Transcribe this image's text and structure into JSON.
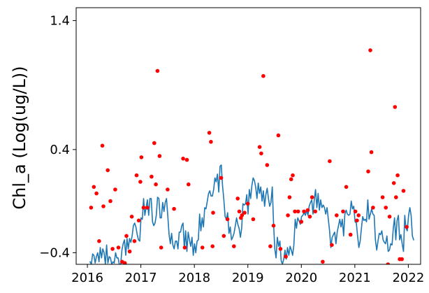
{
  "chart_data": {
    "type": "scatter",
    "title": "",
    "xlabel": "",
    "ylabel": "Chl_a (Log(ug/L))",
    "xlim": [
      2015.79,
      2022.23
    ],
    "ylim": [
      -0.49,
      1.5
    ],
    "x_ticks": [
      2016,
      2017,
      2018,
      2019,
      2020,
      2021,
      2022
    ],
    "x_tick_labels": [
      "2016",
      "2017",
      "2018",
      "2019",
      "2020",
      "2021",
      "2022"
    ],
    "y_ticks": [
      -0.4,
      0.4,
      1.4
    ],
    "y_tick_labels": [
      "−0.4",
      "0.4",
      "1.4"
    ],
    "grid": false,
    "legend": "none",
    "colors": {
      "points": "#ff0000",
      "line": "#1f77b4",
      "axes": "#000000"
    },
    "series": [
      {
        "type": "scatter",
        "points": [
          [
            2016.07,
            -0.05
          ],
          [
            2016.12,
            0.11
          ],
          [
            2016.17,
            0.06
          ],
          [
            2016.22,
            -0.31
          ],
          [
            2016.28,
            0.43
          ],
          [
            2016.3,
            -0.04
          ],
          [
            2016.38,
            0.24
          ],
          [
            2016.43,
            0.0
          ],
          [
            2016.47,
            -0.37
          ],
          [
            2016.52,
            0.09
          ],
          [
            2016.58,
            -0.36
          ],
          [
            2016.65,
            -0.47
          ],
          [
            2016.7,
            -0.48
          ],
          [
            2016.73,
            -0.27
          ],
          [
            2016.79,
            -0.39
          ],
          [
            2016.83,
            -0.12
          ],
          [
            2016.88,
            -0.31
          ],
          [
            2016.92,
            0.2
          ],
          [
            2016.96,
            -0.15
          ],
          [
            2016.99,
            0.15
          ],
          [
            2017.01,
            0.34
          ],
          [
            2017.05,
            -0.05
          ],
          [
            2017.12,
            -0.05
          ],
          [
            2017.2,
            0.19
          ],
          [
            2017.25,
            0.45
          ],
          [
            2017.28,
            0.13
          ],
          [
            2017.31,
            1.01
          ],
          [
            2017.35,
            0.35
          ],
          [
            2017.38,
            -0.36
          ],
          [
            2017.5,
            0.09
          ],
          [
            2017.62,
            -0.06
          ],
          [
            2017.79,
            0.33
          ],
          [
            2017.82,
            -0.36
          ],
          [
            2017.86,
            0.32
          ],
          [
            2017.89,
            0.13
          ],
          [
            2018.15,
            -0.36
          ],
          [
            2018.28,
            0.53
          ],
          [
            2018.31,
            0.46
          ],
          [
            2018.34,
            -0.35
          ],
          [
            2018.35,
            -0.09
          ],
          [
            2018.5,
            0.18
          ],
          [
            2018.55,
            -0.27
          ],
          [
            2018.62,
            -0.14
          ],
          [
            2018.74,
            -0.35
          ],
          [
            2018.81,
            0.02
          ],
          [
            2018.84,
            -0.08
          ],
          [
            2018.87,
            -0.13
          ],
          [
            2018.89,
            -0.11
          ],
          [
            2018.94,
            -0.09
          ],
          [
            2019.0,
            -0.02
          ],
          [
            2019.1,
            -0.14
          ],
          [
            2019.22,
            0.42
          ],
          [
            2019.25,
            0.37
          ],
          [
            2019.29,
            0.97
          ],
          [
            2019.36,
            0.28
          ],
          [
            2019.42,
            -0.35
          ],
          [
            2019.48,
            -0.19
          ],
          [
            2019.57,
            0.51
          ],
          [
            2019.61,
            -0.37
          ],
          [
            2019.71,
            -0.43
          ],
          [
            2019.75,
            -0.11
          ],
          [
            2019.78,
            0.03
          ],
          [
            2019.81,
            0.17
          ],
          [
            2019.84,
            0.2
          ],
          [
            2019.88,
            -0.08
          ],
          [
            2019.94,
            -0.08
          ],
          [
            2020.0,
            -0.16
          ],
          [
            2020.05,
            -0.08
          ],
          [
            2020.12,
            -0.07
          ],
          [
            2020.16,
            -0.12
          ],
          [
            2020.2,
            0.03
          ],
          [
            2020.26,
            -0.08
          ],
          [
            2020.4,
            -0.47
          ],
          [
            2020.53,
            0.31
          ],
          [
            2020.57,
            -0.34
          ],
          [
            2020.66,
            -0.11
          ],
          [
            2020.78,
            -0.08
          ],
          [
            2020.84,
            0.11
          ],
          [
            2020.92,
            -0.26
          ],
          [
            2021.01,
            -0.08
          ],
          [
            2021.04,
            -0.15
          ],
          [
            2021.07,
            -0.11
          ],
          [
            2021.25,
            0.23
          ],
          [
            2021.29,
            1.17
          ],
          [
            2021.31,
            0.38
          ],
          [
            2021.34,
            -0.05
          ],
          [
            2021.52,
            0.03
          ],
          [
            2021.58,
            -0.05
          ],
          [
            2021.62,
            -0.49
          ],
          [
            2021.65,
            -0.12
          ],
          [
            2021.73,
            0.14
          ],
          [
            2021.75,
            0.73
          ],
          [
            2021.77,
            0.03
          ],
          [
            2021.8,
            0.2
          ],
          [
            2021.84,
            -0.45
          ],
          [
            2021.88,
            -0.45
          ],
          [
            2021.91,
            0.08
          ],
          [
            2021.97,
            -0.2
          ]
        ]
      },
      {
        "type": "line",
        "x_start": 2016.05,
        "x_end": 2022.1,
        "values": [
          -0.47,
          -0.49,
          -0.41,
          -0.42,
          -0.48,
          -0.43,
          -0.4,
          -0.47,
          -0.36,
          -0.44,
          -0.37,
          -0.4,
          -0.49,
          -0.34,
          -0.48,
          -0.43,
          -0.44,
          -0.49,
          -0.47,
          -0.48,
          -0.4,
          -0.44,
          -0.44,
          -0.49,
          -0.49,
          -0.38,
          -0.33,
          -0.3,
          -0.42,
          -0.29,
          -0.37,
          -0.29,
          -0.32,
          -0.27,
          -0.19,
          -0.17,
          -0.2,
          -0.26,
          -0.3,
          -0.31,
          -0.13,
          -0.14,
          0.02,
          -0.11,
          -0.05,
          0.01,
          -0.11,
          0.02,
          0.02,
          -0.16,
          -0.19,
          -0.17,
          -0.11,
          0.03,
          0.02,
          -0.13,
          -0.13,
          -0.01,
          -0.08,
          -0.01,
          0.02,
          -0.11,
          -0.26,
          -0.33,
          -0.25,
          -0.34,
          -0.37,
          -0.31,
          -0.31,
          -0.37,
          -0.24,
          -0.24,
          -0.19,
          -0.17,
          -0.37,
          -0.23,
          -0.39,
          -0.24,
          -0.3,
          -0.35,
          -0.28,
          -0.42,
          -0.33,
          -0.4,
          -0.31,
          -0.3,
          -0.1,
          -0.23,
          -0.13,
          -0.2,
          -0.05,
          -0.06,
          -0.0,
          0.06,
          0.08,
          0.04,
          0.04,
          0.09,
          0.18,
          0.15,
          0.21,
          0.07,
          0.27,
          0.28,
          0.12,
          0.01,
          -0.12,
          -0.14,
          -0.09,
          -0.25,
          -0.2,
          -0.3,
          -0.28,
          -0.25,
          -0.19,
          -0.13,
          -0.18,
          -0.21,
          -0.28,
          -0.21,
          -0.02,
          -0.03,
          -0.02,
          0.05,
          -0.1,
          0.09,
          0.02,
          0.12,
          0.18,
          0.16,
          0.11,
          0.02,
          0.14,
          0.06,
          0.11,
          0.0,
          0.08,
          -0.04,
          0.05,
          0.1,
          0.02,
          -0.04,
          -0.01,
          0.11,
          -0.17,
          -0.37,
          -0.44,
          -0.28,
          -0.35,
          -0.31,
          -0.46,
          -0.49,
          -0.45,
          -0.38,
          -0.45,
          -0.36,
          -0.42,
          -0.35,
          -0.38,
          -0.42,
          -0.34,
          -0.14,
          -0.21,
          -0.13,
          -0.15,
          -0.18,
          -0.12,
          -0.11,
          -0.09,
          -0.11,
          -0.07,
          -0.11,
          -0.04,
          -0.01,
          0.01,
          -0.1,
          0.01,
          0.09,
          -0.05,
          0.06,
          -0.07,
          0.01,
          -0.05,
          -0.03,
          -0.05,
          -0.1,
          -0.05,
          -0.14,
          -0.23,
          -0.36,
          -0.28,
          -0.26,
          -0.24,
          -0.33,
          -0.24,
          -0.19,
          -0.14,
          -0.2,
          -0.14,
          -0.27,
          -0.1,
          -0.07,
          -0.1,
          -0.11,
          -0.1,
          0.0,
          -0.06,
          -0.04,
          -0.16,
          -0.17,
          -0.27,
          -0.36,
          -0.31,
          -0.21,
          -0.12,
          -0.15,
          -0.14,
          -0.16,
          0.01,
          -0.14,
          -0.1,
          -0.06,
          -0.1,
          -0.11,
          -0.3,
          -0.38,
          -0.31,
          -0.25,
          -0.26,
          -0.23,
          -0.3,
          -0.32,
          -0.33,
          -0.27,
          -0.39,
          -0.38,
          -0.33,
          -0.34,
          -0.21,
          -0.13,
          -0.3,
          -0.15,
          -0.11,
          -0.3,
          -0.26,
          -0.33,
          -0.39,
          -0.11,
          -0.21,
          -0.23,
          -0.11,
          -0.05,
          -0.11,
          -0.27,
          -0.3
        ]
      }
    ]
  }
}
